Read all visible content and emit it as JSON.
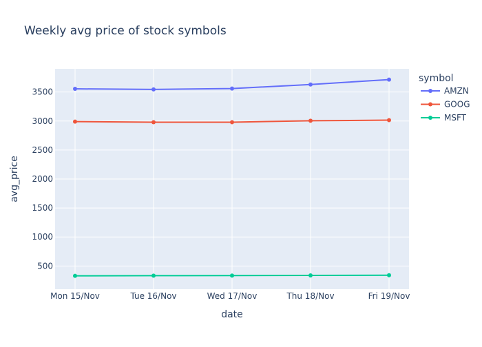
{
  "chart_data": {
    "type": "line",
    "title": "Weekly avg price of stock symbols",
    "xlabel": "date",
    "ylabel": "avg_price",
    "categories": [
      "Mon 15/Nov",
      "Tue 16/Nov",
      "Wed 17/Nov",
      "Thu 18/Nov",
      "Fri 19/Nov"
    ],
    "ylim": [
      100,
      3900
    ],
    "yticks": [
      500,
      1000,
      1500,
      2000,
      2500,
      3000,
      3500
    ],
    "grid": true,
    "legend": {
      "title": "symbol",
      "placement": "top-right, outside plot"
    },
    "series": [
      {
        "name": "AMZN",
        "color": "#636efa",
        "values": [
          3555,
          3545,
          3560,
          3630,
          3715
        ]
      },
      {
        "name": "GOOG",
        "color": "#ef553b",
        "values": [
          2990,
          2980,
          2980,
          3005,
          3015
        ]
      },
      {
        "name": "MSFT",
        "color": "#00cc96",
        "values": [
          330,
          333,
          335,
          337,
          340
        ]
      }
    ],
    "colors": {
      "plot_bg": "#e5ecf6",
      "grid": "#ffffff",
      "text": "#2a3f5f"
    }
  }
}
